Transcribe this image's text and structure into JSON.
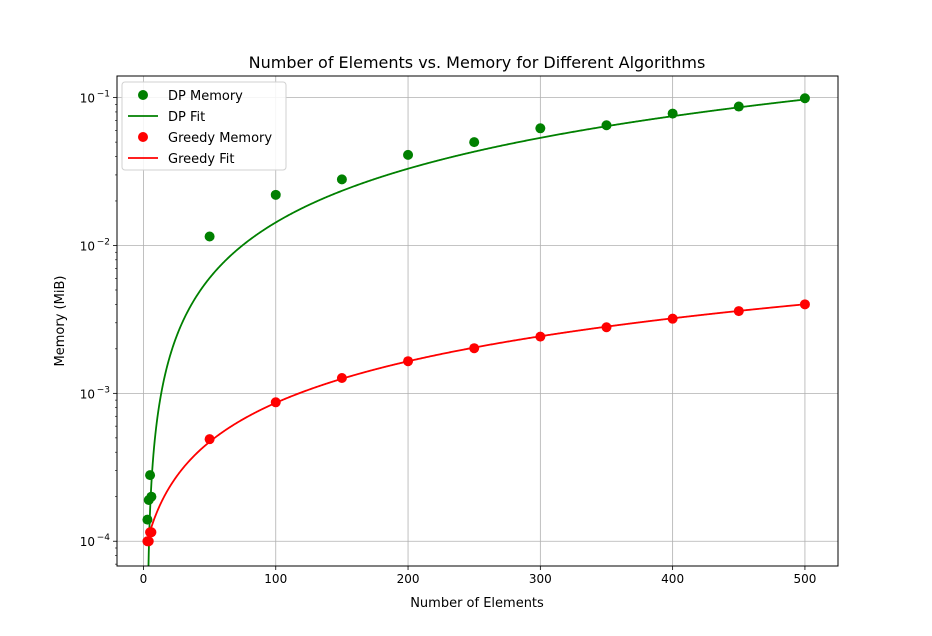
{
  "chart_data": {
    "type": "scatter",
    "title": "Number of Elements vs. Memory for Different Algorithms",
    "xlabel": "Number of Elements",
    "ylabel": "Memory (MiB)",
    "xlim": [
      -20,
      525
    ],
    "ylim": [
      6.8e-05,
      0.14
    ],
    "yscale": "log",
    "grid": true,
    "legend": "top-left",
    "x_ticks": [
      {
        "value": 0,
        "label": "0"
      },
      {
        "value": 100,
        "label": "100"
      },
      {
        "value": 200,
        "label": "200"
      },
      {
        "value": 300,
        "label": "300"
      },
      {
        "value": 400,
        "label": "400"
      },
      {
        "value": 500,
        "label": "500"
      }
    ],
    "y_ticks": [
      {
        "value": 0.0001,
        "label_base": "10",
        "label_exp": "−4"
      },
      {
        "value": 0.001,
        "label_base": "10",
        "label_exp": "−3"
      },
      {
        "value": 0.01,
        "label_base": "10",
        "label_exp": "−2"
      },
      {
        "value": 0.1,
        "label_base": "10",
        "label_exp": "−1"
      }
    ],
    "series": [
      {
        "name": "DP Memory",
        "kind": "points",
        "color": "#008000",
        "x": [
          3,
          4,
          5,
          6,
          50,
          100,
          150,
          200,
          250,
          300,
          350,
          400,
          450,
          500
        ],
        "y": [
          0.00014,
          0.00019,
          0.00028,
          0.0002,
          0.0115,
          0.022,
          0.028,
          0.041,
          0.05,
          0.062,
          0.065,
          0.078,
          0.087,
          0.099
        ]
      },
      {
        "name": "DP Fit",
        "kind": "line",
        "color": "#008000",
        "fit": {
          "form": "a*x*ln(x)+b",
          "a": 3.128e-05,
          "b": -9e-05
        }
      },
      {
        "name": "Greedy Memory",
        "kind": "points",
        "color": "#ff0000",
        "x": [
          3,
          4,
          5,
          6,
          50,
          100,
          150,
          200,
          250,
          300,
          350,
          400,
          450,
          500
        ],
        "y": [
          0.0001,
          0.0001,
          0.000115,
          0.000115,
          0.00049,
          0.00087,
          0.00127,
          0.00165,
          0.00202,
          0.00242,
          0.0028,
          0.0032,
          0.0036,
          0.004
        ]
      },
      {
        "name": "Greedy Fit",
        "kind": "line",
        "color": "#ff0000",
        "fit": {
          "form": "a*x+b",
          "a": 7.85e-06,
          "b": 7.75e-05
        }
      }
    ]
  }
}
